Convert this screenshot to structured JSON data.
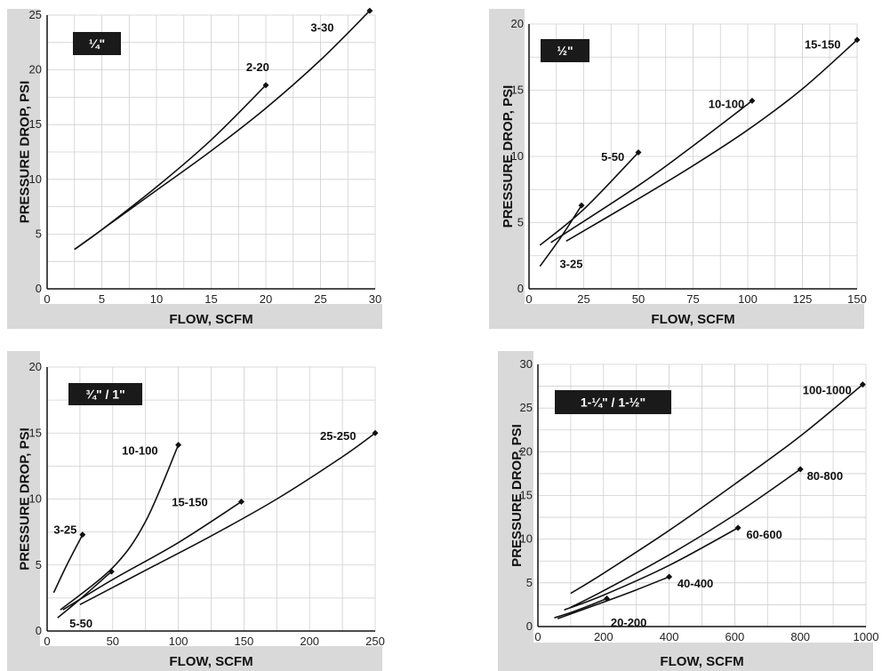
{
  "chart_data": [
    {
      "type": "line",
      "title": "¼\"",
      "xlabel": "FLOW, SCFM",
      "ylabel": "PRESSURE DROP, PSI",
      "xlim": [
        0,
        30
      ],
      "ylim": [
        0,
        25
      ],
      "xticks": [
        0,
        5,
        10,
        15,
        20,
        25,
        30
      ],
      "yticks": [
        0,
        5,
        10,
        15,
        20,
        25
      ],
      "grid": true,
      "series": [
        {
          "name": "2-20",
          "x": [
            2.5,
            5,
            10,
            15,
            20
          ],
          "y": [
            3.6,
            5.4,
            9.3,
            13.6,
            18.6
          ],
          "label_at": [
            18.2,
            20.3
          ]
        },
        {
          "name": "3-30",
          "x": [
            2.5,
            5,
            10,
            15,
            20,
            25,
            29.5
          ],
          "y": [
            3.6,
            5.4,
            9.0,
            12.6,
            16.5,
            20.9,
            25.4
          ],
          "label_at": [
            24.1,
            23.9
          ]
        }
      ]
    },
    {
      "type": "line",
      "title": "½\"",
      "xlabel": "FLOW, SCFM",
      "ylabel": "PRESSURE DROP, PSI",
      "xlim": [
        0,
        150
      ],
      "ylim": [
        0,
        20
      ],
      "xticks": [
        0,
        25,
        50,
        75,
        100,
        125,
        150
      ],
      "yticks": [
        0,
        5,
        10,
        15,
        20
      ],
      "grid": true,
      "series": [
        {
          "name": "3-25",
          "x": [
            5,
            15,
            24
          ],
          "y": [
            1.7,
            4.0,
            6.3
          ],
          "label_at": [
            14,
            1.9
          ]
        },
        {
          "name": "5-50",
          "x": [
            5,
            25,
            50
          ],
          "y": [
            3.3,
            6.0,
            10.3
          ],
          "label_at": [
            33,
            10
          ]
        },
        {
          "name": "10-100",
          "x": [
            10,
            50,
            75,
            102
          ],
          "y": [
            3.5,
            7.8,
            10.8,
            14.2
          ],
          "label_at": [
            82,
            14
          ]
        },
        {
          "name": "15-150",
          "x": [
            17,
            50,
            75,
            100,
            125,
            150
          ],
          "y": [
            3.6,
            6.8,
            9.3,
            12.0,
            15.1,
            18.8
          ],
          "label_at": [
            126,
            18.5
          ]
        }
      ]
    },
    {
      "type": "line",
      "title": "¾\" / 1\"",
      "xlabel": "FLOW, SCFM",
      "ylabel": "PRESSURE DROP, PSI",
      "xlim": [
        0,
        250
      ],
      "ylim": [
        0,
        20
      ],
      "xticks": [
        0,
        50,
        100,
        150,
        200,
        250
      ],
      "yticks": [
        0,
        5,
        10,
        15,
        20
      ],
      "grid": true,
      "series": [
        {
          "name": "3-25",
          "x": [
            5,
            15,
            27
          ],
          "y": [
            2.9,
            5.0,
            7.3
          ],
          "label_at": [
            5,
            7.7
          ]
        },
        {
          "name": "5-50",
          "x": [
            8,
            25,
            49
          ],
          "y": [
            1.0,
            2.4,
            4.5
          ],
          "label_at": [
            17,
            0.6
          ]
        },
        {
          "name": "10-100",
          "x": [
            10,
            50,
            75,
            100
          ],
          "y": [
            1.6,
            4.8,
            8.3,
            14.1
          ],
          "label_at": [
            57,
            13.7
          ]
        },
        {
          "name": "15-150",
          "x": [
            12,
            50,
            100,
            148
          ],
          "y": [
            1.6,
            3.9,
            6.7,
            9.8
          ],
          "label_at": [
            95,
            9.8
          ]
        },
        {
          "name": "25-250",
          "x": [
            25,
            75,
            125,
            175,
            225,
            250
          ],
          "y": [
            2.0,
            4.6,
            7.2,
            10.0,
            13.2,
            15.0
          ],
          "label_at": [
            208,
            14.8
          ]
        }
      ]
    },
    {
      "type": "line",
      "title": "1-¼\" / 1-½\"",
      "xlabel": "FLOW, SCFM",
      "ylabel": "PRESSURE DROP, PSI",
      "xlim": [
        0,
        1000
      ],
      "ylim": [
        0,
        30
      ],
      "xticks": [
        0,
        200,
        400,
        600,
        800,
        1000
      ],
      "yticks": [
        0,
        5,
        10,
        15,
        20,
        25,
        30
      ],
      "grid": true,
      "series": [
        {
          "name": "20-200",
          "x": [
            50,
            100,
            150,
            210
          ],
          "y": [
            1.0,
            1.6,
            2.3,
            3.2
          ],
          "label_at": [
            222,
            0.5
          ]
        },
        {
          "name": "40-400",
          "x": [
            60,
            200,
            300,
            400
          ],
          "y": [
            0.9,
            2.8,
            4.2,
            5.7
          ],
          "label_at": [
            425,
            5.0
          ]
        },
        {
          "name": "60-600",
          "x": [
            80,
            200,
            400,
            610
          ],
          "y": [
            1.9,
            3.6,
            7.0,
            11.3
          ],
          "label_at": [
            635,
            10.6
          ]
        },
        {
          "name": "80-800",
          "x": [
            100,
            200,
            400,
            600,
            800
          ],
          "y": [
            2.2,
            4.1,
            8.2,
            12.8,
            18.0
          ],
          "label_at": [
            820,
            17.3
          ]
        },
        {
          "name": "100-1000",
          "x": [
            100,
            200,
            400,
            600,
            800,
            990
          ],
          "y": [
            3.8,
            6.1,
            11.0,
            16.3,
            21.8,
            27.7
          ],
          "label_at": [
            807,
            27.1
          ]
        }
      ]
    }
  ]
}
